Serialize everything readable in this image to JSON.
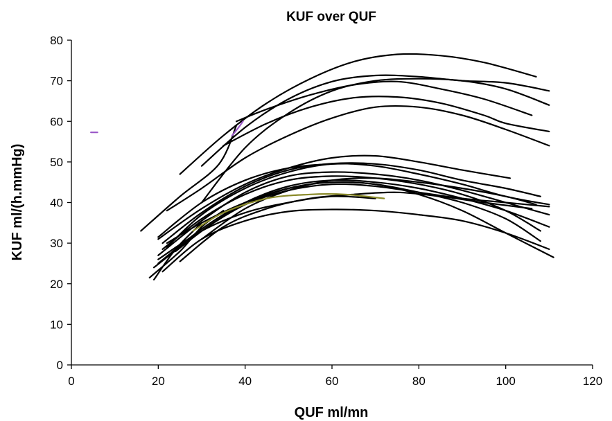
{
  "chart_data": {
    "type": "line",
    "title": "KUF over QUF",
    "xlabel": "QUF ml/mn",
    "ylabel": "KUF ml/(h.mmHg)",
    "xlim": [
      0,
      120
    ],
    "ylim": [
      0,
      80
    ],
    "xticks": [
      0,
      20,
      40,
      60,
      80,
      100,
      120
    ],
    "yticks": [
      0,
      10,
      20,
      30,
      40,
      50,
      60,
      70,
      80
    ],
    "grid": false,
    "legend": "none",
    "colors": {
      "default": "#000000",
      "purple": "#9b59c8",
      "olive": "#8a8a2a"
    },
    "series": [
      {
        "color": "#000000",
        "x": [
          25,
          35,
          45,
          55,
          65,
          75,
          85,
          95,
          107
        ],
        "y": [
          47,
          56.5,
          64.5,
          70.5,
          74.7,
          76.5,
          76.2,
          74.5,
          71
        ]
      },
      {
        "color": "#000000",
        "x": [
          30,
          40,
          50,
          60,
          70,
          80,
          90,
          100,
          110
        ],
        "y": [
          49,
          58.5,
          65.5,
          69.8,
          71.3,
          71,
          70,
          69.5,
          67.5
        ]
      },
      {
        "color": "#000000",
        "x": [
          30,
          40,
          50,
          60,
          70,
          80,
          90,
          100,
          110
        ],
        "y": [
          40,
          53.5,
          62,
          67.5,
          70,
          70.5,
          70,
          68,
          64
        ]
      },
      {
        "color": "#000000",
        "x": [
          38,
          45,
          55,
          65,
          75,
          85,
          95,
          106
        ],
        "y": [
          60,
          63,
          66.5,
          69,
          69.8,
          68,
          65.5,
          61.5
        ]
      },
      {
        "color": "#000000",
        "x": [
          35,
          45,
          55,
          65,
          75,
          85,
          95,
          100,
          110
        ],
        "y": [
          54,
          59.5,
          63.5,
          65.8,
          66,
          64.5,
          61.5,
          59.5,
          57.5
        ]
      },
      {
        "color": "#000000",
        "x": [
          22,
          30,
          40,
          50,
          60,
          70,
          80,
          90,
          100,
          110
        ],
        "y": [
          38,
          43.5,
          51,
          56.5,
          60.8,
          63.5,
          63.5,
          61.5,
          58,
          54
        ]
      },
      {
        "color": "#000000",
        "x": [
          16,
          25,
          34,
          38
        ],
        "y": [
          33,
          41.5,
          49.5,
          59
        ]
      },
      {
        "color": "#000000",
        "x": [
          20,
          30,
          40,
          50,
          60,
          70,
          80,
          90,
          101
        ],
        "y": [
          31,
          38.5,
          44.5,
          48.5,
          51,
          51.5,
          50,
          48,
          46
        ]
      },
      {
        "color": "#000000",
        "x": [
          21,
          30,
          40,
          50,
          60,
          70,
          80,
          90,
          100,
          108
        ],
        "y": [
          30,
          37.5,
          44,
          48,
          49.6,
          49.5,
          48,
          45.5,
          43.5,
          41.5
        ]
      },
      {
        "color": "#000000",
        "x": [
          22,
          30,
          40,
          50,
          60,
          70,
          80,
          90,
          100,
          110
        ],
        "y": [
          29,
          37,
          43.5,
          47.5,
          49.5,
          49,
          47,
          44.5,
          41.5,
          39.5
        ]
      },
      {
        "color": "#000000",
        "x": [
          20,
          30,
          40,
          50,
          60,
          70,
          80,
          90,
          100,
          110
        ],
        "y": [
          27,
          35.5,
          42.5,
          46.5,
          47.5,
          47,
          45.5,
          43,
          40,
          37
        ]
      },
      {
        "color": "#000000",
        "x": [
          21,
          30,
          40,
          50,
          60,
          70,
          80,
          90,
          100,
          108
        ],
        "y": [
          28.5,
          36,
          42,
          45.5,
          46.5,
          46,
          44.5,
          42,
          38,
          33
        ]
      },
      {
        "color": "#000000",
        "x": [
          20,
          30,
          40,
          50,
          60,
          70,
          80,
          90,
          100,
          110
        ],
        "y": [
          25,
          33.5,
          40,
          44,
          45.5,
          45,
          43.5,
          41,
          38,
          34
        ]
      },
      {
        "color": "#000000",
        "x": [
          19,
          30,
          40,
          50,
          60,
          70,
          80,
          90,
          100,
          108
        ],
        "y": [
          24,
          33,
          39.5,
          43.5,
          45,
          44.5,
          42.5,
          40,
          36,
          30.5
        ]
      },
      {
        "color": "#000000",
        "x": [
          22,
          30,
          40,
          50,
          60,
          70,
          80,
          90,
          100,
          111
        ],
        "y": [
          30,
          35,
          40,
          43.5,
          45,
          44.5,
          42,
          38,
          32.5,
          26.5
        ]
      },
      {
        "color": "#000000",
        "x": [
          25,
          35,
          45,
          55,
          65,
          75,
          85,
          95,
          106
        ],
        "y": [
          25.5,
          34,
          38.5,
          41,
          42,
          42.5,
          41.5,
          40,
          38.5
        ]
      },
      {
        "color": "#000000",
        "x": [
          30,
          40,
          50,
          60,
          70,
          80,
          90,
          100,
          107
        ],
        "y": [
          31,
          38.5,
          43,
          45.5,
          46,
          45,
          43.5,
          41.5,
          39.5
        ]
      },
      {
        "color": "#000000",
        "x": [
          24,
          32,
          40,
          50,
          60,
          70,
          80,
          90,
          100,
          110
        ],
        "y": [
          28,
          34.5,
          39.5,
          43,
          44.5,
          44,
          42.5,
          41,
          40,
          39
        ]
      },
      {
        "color": "#000000",
        "x": [
          20,
          30,
          40,
          50,
          60,
          70
        ],
        "y": [
          26,
          33,
          37.5,
          40,
          41.5,
          41
        ]
      },
      {
        "color": "#000000",
        "x": [
          21,
          30,
          40,
          50,
          60,
          70,
          80,
          90,
          100,
          110
        ],
        "y": [
          23,
          31,
          35.5,
          37.8,
          38.3,
          38,
          37,
          35.5,
          32.5,
          28.5
        ]
      },
      {
        "color": "#000000",
        "x": [
          18,
          25,
          30,
          35
        ],
        "y": [
          21.5,
          28,
          34,
          38
        ]
      },
      {
        "color": "#000000",
        "x": [
          19,
          24,
          30
        ],
        "y": [
          21,
          28.5,
          35
        ]
      },
      {
        "color": "#000000",
        "x": [
          20,
          30,
          40,
          50,
          60,
          68
        ],
        "y": [
          31.5,
          40,
          45.5,
          48.5,
          49.5,
          49.5
        ]
      },
      {
        "color": "#8a8a2a",
        "x": [
          28,
          35,
          45,
          55,
          63,
          72
        ],
        "y": [
          33,
          37.5,
          41,
          42,
          42,
          41
        ]
      },
      {
        "color": "#9b59c8",
        "x": [
          37,
          38.5,
          39.5
        ],
        "y": [
          56.5,
          58.5,
          60
        ]
      },
      {
        "color": "#9b59c8",
        "x": [
          4.5,
          6
        ],
        "y": [
          57.3,
          57.3
        ]
      }
    ]
  }
}
